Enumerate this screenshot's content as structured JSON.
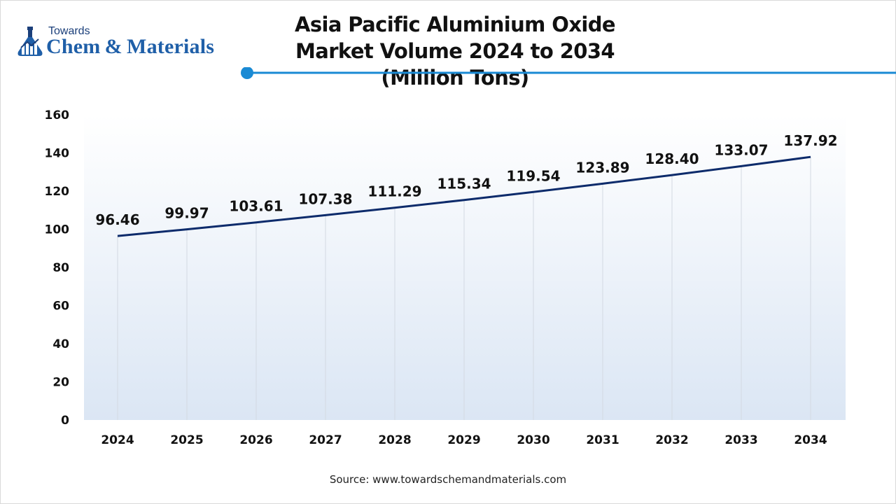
{
  "header": {
    "logo_small": "Towards",
    "logo_big": "Chem & Materials",
    "title_line1": "Asia Pacific Aluminium Oxide Market Volume 2024 to 2034",
    "title_line2": "(Million Tons)"
  },
  "footer": {
    "source": "Source: www.towardschemandmaterials.com"
  },
  "colors": {
    "line": "#0d2b6b",
    "accent": "#1a8ad4",
    "logo_dark": "#1b3f7a",
    "logo_blue": "#1f5fa8"
  },
  "chart_data": {
    "type": "line",
    "title": "Asia Pacific Aluminium Oxide Market Volume 2024 to 2034 (Million Tons)",
    "xlabel": "",
    "ylabel": "",
    "categories": [
      "2024",
      "2025",
      "2026",
      "2027",
      "2028",
      "2029",
      "2030",
      "2031",
      "2032",
      "2033",
      "2034"
    ],
    "values": [
      96.46,
      99.97,
      103.61,
      107.38,
      111.29,
      115.34,
      119.54,
      123.89,
      128.4,
      133.07,
      137.92
    ],
    "value_labels": [
      "96.46",
      "99.97",
      "103.61",
      "107.38",
      "111.29",
      "115.34",
      "119.54",
      "123.89",
      "128.40",
      "133.07",
      "137.92"
    ],
    "ylim": [
      0,
      160
    ],
    "yticks": [
      0,
      20,
      40,
      60,
      80,
      100,
      120,
      140,
      160
    ],
    "grid": "vertical",
    "legend": "none"
  }
}
